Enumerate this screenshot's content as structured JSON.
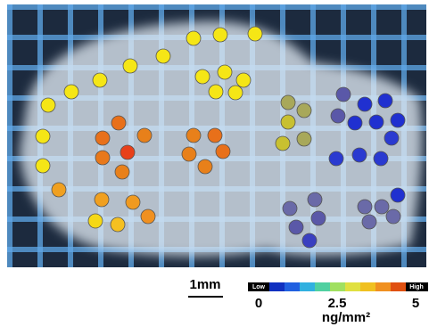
{
  "scale_bar": "1mm",
  "colorbar": {
    "low": "Low",
    "high": "High",
    "ticks": [
      0,
      2.5,
      5
    ],
    "unit": "ng/mm²"
  }
}
